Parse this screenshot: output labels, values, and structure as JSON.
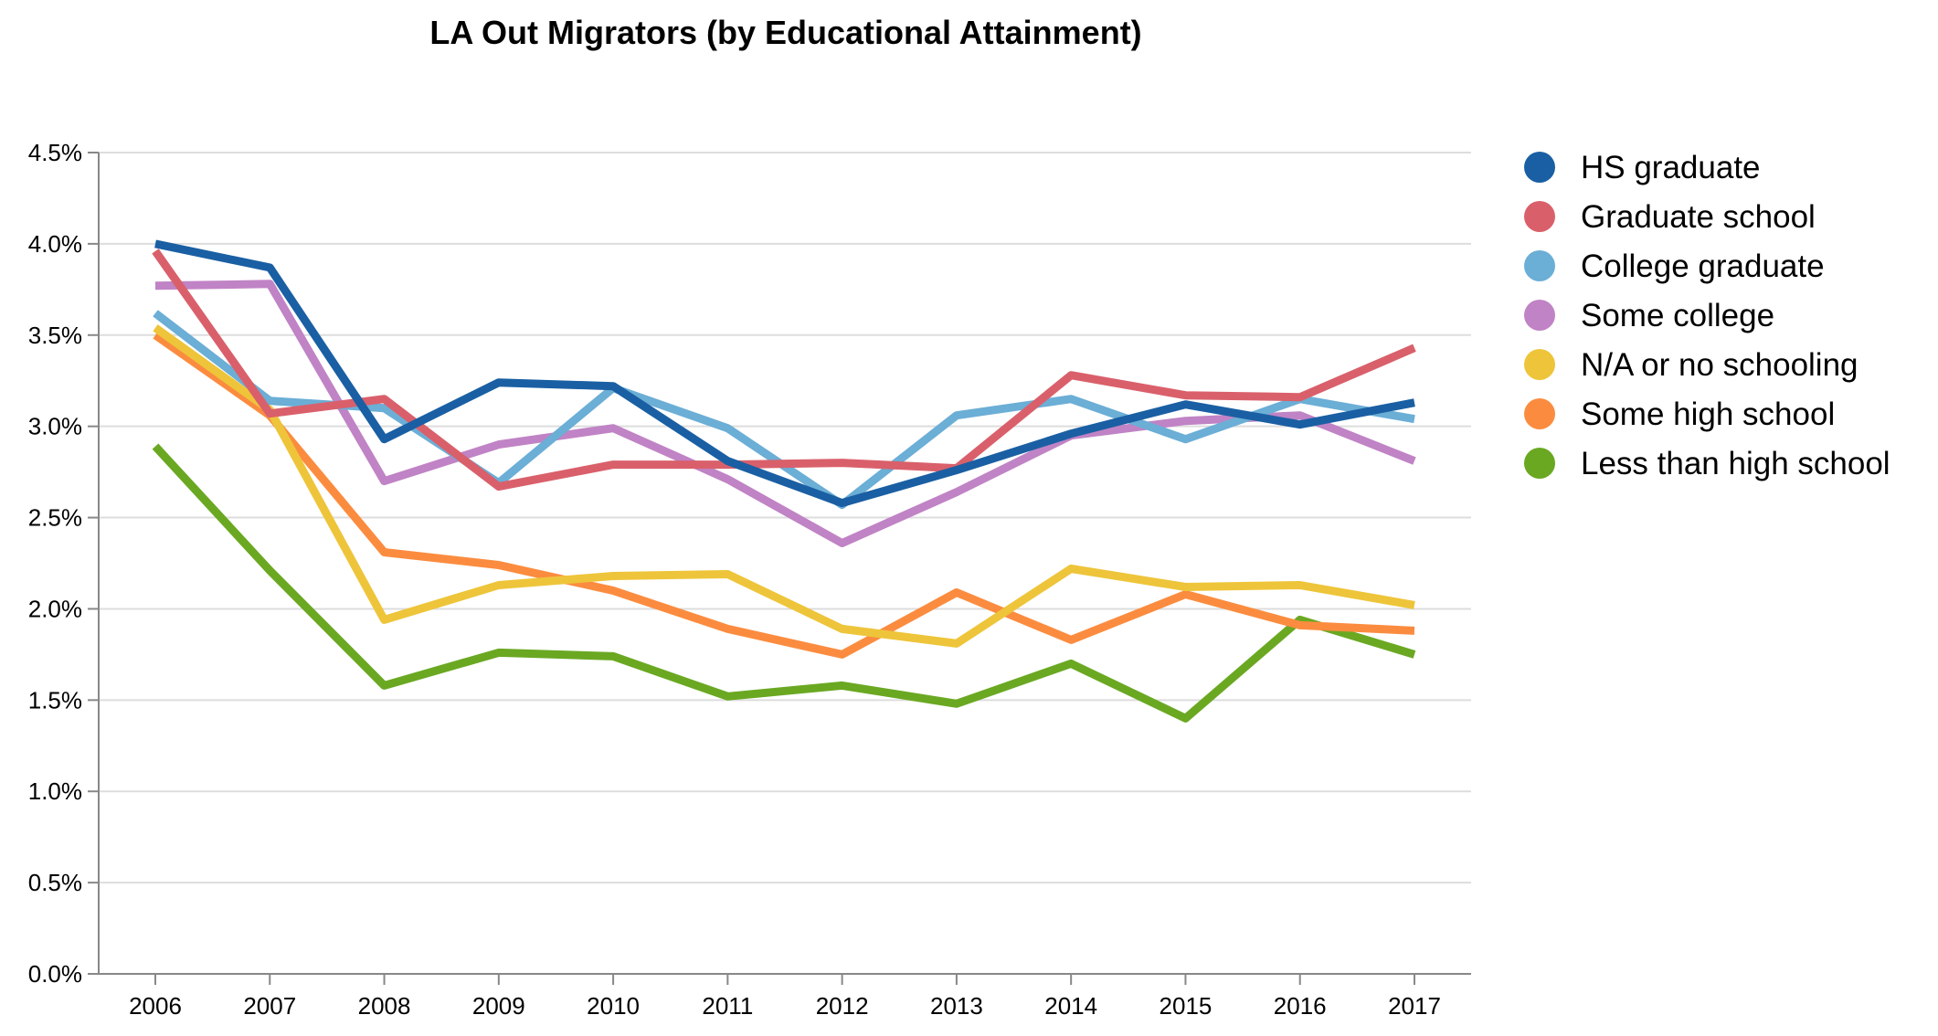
{
  "chart_data": {
    "type": "line",
    "title": "LA Out Migrators (by Educational Attainment)",
    "xlabel": "",
    "ylabel": "",
    "x": [
      "2006",
      "2007",
      "2008",
      "2009",
      "2010",
      "2011",
      "2012",
      "2013",
      "2014",
      "2015",
      "2016",
      "2017"
    ],
    "ylim": [
      0,
      4.5
    ],
    "yticks": [
      0,
      0.5,
      1,
      1.5,
      2,
      2.5,
      3,
      3.5,
      4,
      4.5
    ],
    "ytick_labels": [
      "0.0%",
      "0.5%",
      "1.0%",
      "1.5%",
      "2.0%",
      "2.5%",
      "3.0%",
      "3.5%",
      "4.0%",
      "4.5%"
    ],
    "grid": true,
    "legend_position": "right",
    "series": [
      {
        "name": "HS graduate",
        "color": "#1a5fa3",
        "values": [
          4.0,
          3.87,
          2.93,
          3.24,
          3.22,
          2.81,
          2.58,
          2.76,
          2.96,
          3.12,
          3.01,
          3.13
        ]
      },
      {
        "name": "Graduate school",
        "color": "#d9606b",
        "values": [
          3.96,
          3.07,
          3.15,
          2.67,
          2.79,
          2.79,
          2.8,
          2.77,
          3.28,
          3.17,
          3.16,
          3.43
        ]
      },
      {
        "name": "College graduate",
        "color": "#6baed6",
        "values": [
          3.62,
          3.14,
          3.1,
          2.69,
          3.21,
          2.99,
          2.57,
          3.06,
          3.15,
          2.93,
          3.15,
          3.04
        ]
      },
      {
        "name": "Some college",
        "color": "#c083c5",
        "values": [
          3.77,
          3.78,
          2.7,
          2.9,
          2.99,
          2.71,
          2.36,
          2.64,
          2.95,
          3.03,
          3.06,
          2.81
        ]
      },
      {
        "name": "N/A or no schooling",
        "color": "#eec53a",
        "values": [
          3.54,
          3.09,
          1.94,
          2.13,
          2.18,
          2.19,
          1.89,
          1.81,
          2.22,
          2.12,
          2.13,
          2.02
        ]
      },
      {
        "name": "Some high school",
        "color": "#fb8c3f",
        "values": [
          3.5,
          3.06,
          2.31,
          2.24,
          2.1,
          1.89,
          1.75,
          2.09,
          1.83,
          2.08,
          1.91,
          1.88
        ]
      },
      {
        "name": "Less than high school",
        "color": "#6aa822",
        "values": [
          2.89,
          2.21,
          1.58,
          1.76,
          1.74,
          1.52,
          1.58,
          1.48,
          1.7,
          1.4,
          1.94,
          1.75
        ]
      }
    ]
  }
}
